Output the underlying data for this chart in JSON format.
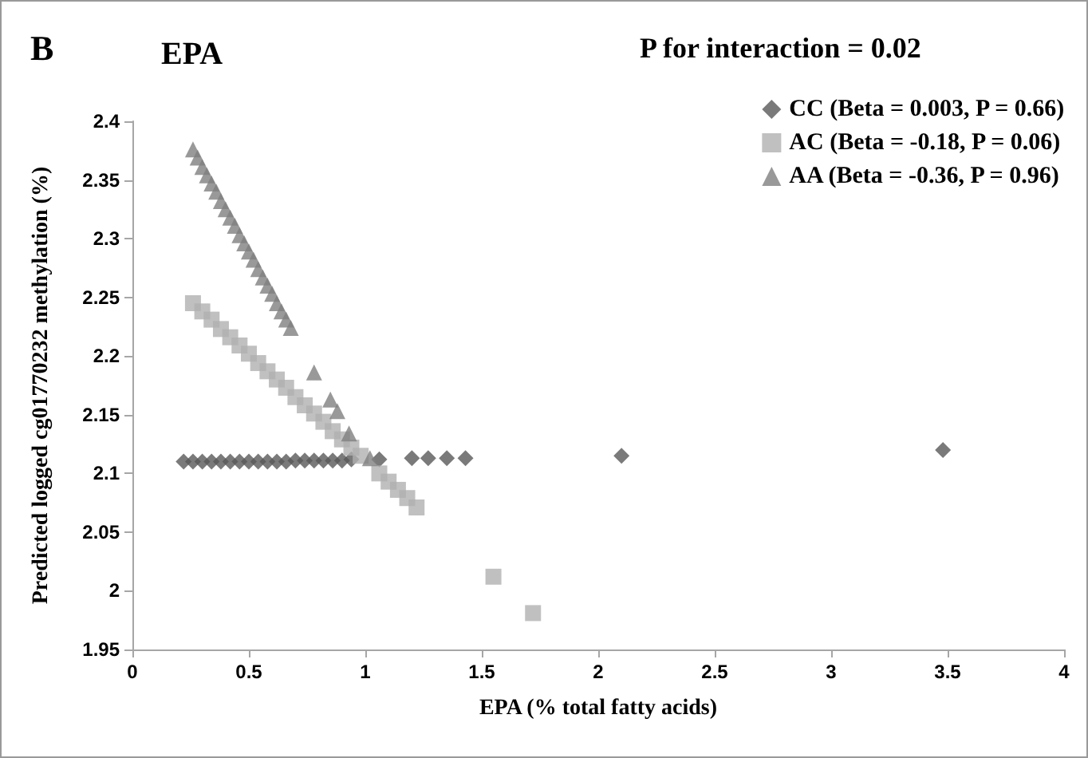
{
  "chart_data": {
    "type": "scatter",
    "title": "EPA",
    "xlabel": "EPA (% total fatty acids)",
    "ylabel": "Predicted logged cg01770232 methylation (%)",
    "annotations": [
      "B",
      "P for interaction = 0.02"
    ],
    "xlim": [
      0,
      4
    ],
    "xticks": [
      0,
      0.5,
      1,
      1.5,
      2,
      2.5,
      3,
      3.5,
      4
    ],
    "ylim": [
      1.95,
      2.4
    ],
    "yticks": [
      1.95,
      2,
      2.05,
      2.1,
      2.15,
      2.2,
      2.25,
      2.3,
      2.35,
      2.4
    ],
    "grid": false,
    "legend": "top right",
    "series": [
      {
        "name": "CC (Beta = 0.003, P = 0.66)",
        "color": "#595959",
        "marker": "diamond",
        "x": [
          0.22,
          0.26,
          0.3,
          0.34,
          0.38,
          0.42,
          0.46,
          0.5,
          0.54,
          0.58,
          0.62,
          0.66,
          0.7,
          0.74,
          0.78,
          0.82,
          0.86,
          0.9,
          0.94,
          0.98,
          1.02,
          1.06,
          1.2,
          1.27,
          1.35,
          1.43,
          2.1,
          3.48
        ],
        "values": [
          2.11,
          2.11,
          2.11,
          2.11,
          2.11,
          2.11,
          2.11,
          2.11,
          2.11,
          2.11,
          2.11,
          2.11,
          2.111,
          2.111,
          2.111,
          2.111,
          2.111,
          2.111,
          2.112,
          null,
          null,
          2.112,
          2.113,
          2.113,
          2.113,
          2.113,
          2.115,
          2.12
        ]
      },
      {
        "name": "AC (Beta = -0.18, P = 0.06)",
        "color": "#b0b0b0",
        "marker": "square",
        "x": [
          0.26,
          0.3,
          0.34,
          0.38,
          0.42,
          0.46,
          0.5,
          0.54,
          0.58,
          0.62,
          0.66,
          0.7,
          0.74,
          0.78,
          0.82,
          0.86,
          0.9,
          0.94,
          0.98,
          1.02,
          1.06,
          1.1,
          1.14,
          1.18,
          1.22,
          1.55,
          1.72
        ],
        "values": [
          2.245,
          2.238,
          2.231,
          2.223,
          2.216,
          2.209,
          2.202,
          2.194,
          2.187,
          2.18,
          2.173,
          2.165,
          2.158,
          2.151,
          2.144,
          2.136,
          2.129,
          2.122,
          2.115,
          null,
          2.1,
          2.093,
          2.086,
          2.079,
          2.071,
          2.012,
          1.981
        ]
      },
      {
        "name": "AA (Beta = -0.36, P = 0.96)",
        "color": "#7f7f7f",
        "marker": "triangle",
        "x": [
          0.26,
          0.28,
          0.3,
          0.32,
          0.34,
          0.36,
          0.38,
          0.4,
          0.42,
          0.44,
          0.46,
          0.48,
          0.5,
          0.52,
          0.54,
          0.56,
          0.58,
          0.6,
          0.62,
          0.64,
          0.66,
          0.68,
          0.78,
          0.85,
          0.88,
          0.93,
          1.02
        ],
        "values": [
          2.376,
          2.369,
          2.361,
          2.354,
          2.347,
          2.34,
          2.332,
          2.325,
          2.318,
          2.311,
          2.303,
          2.296,
          2.289,
          2.282,
          2.274,
          2.267,
          2.26,
          2.253,
          2.245,
          2.238,
          2.231,
          2.224,
          2.186,
          2.163,
          2.153,
          2.134,
          2.113
        ]
      }
    ]
  }
}
